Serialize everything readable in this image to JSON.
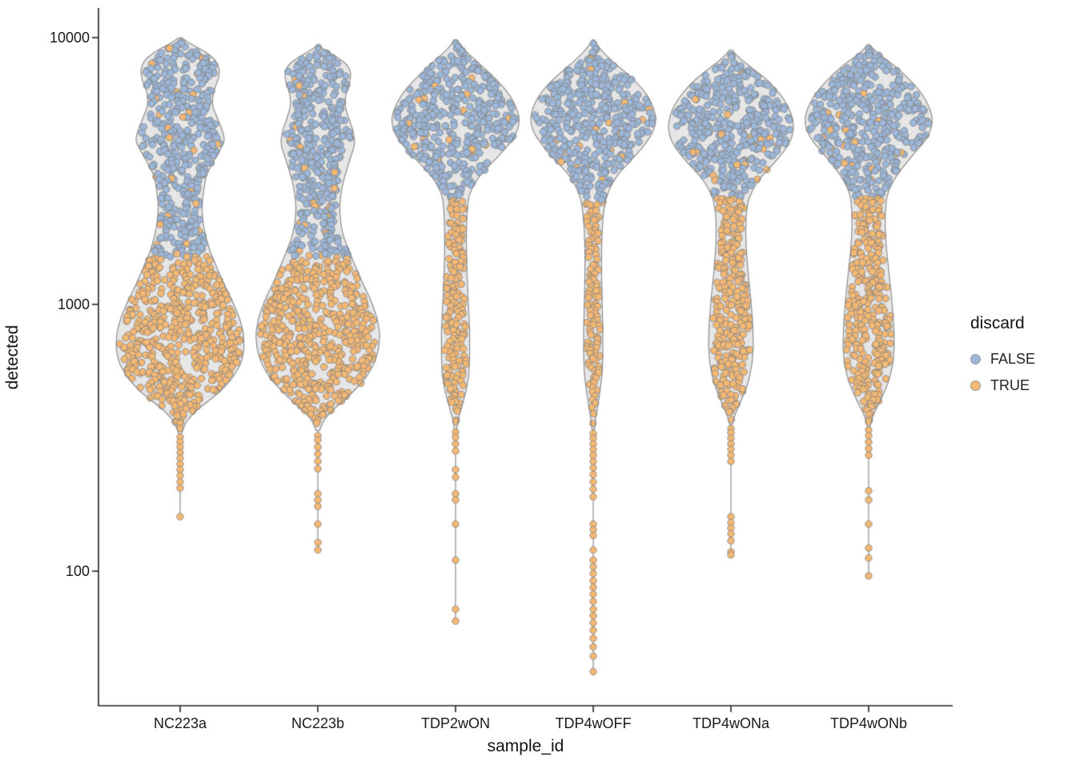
{
  "figure": {
    "background": "#FFFFFF"
  },
  "chart_data": {
    "type": "violin",
    "title": "",
    "xlabel": "sample_id",
    "ylabel": "detected",
    "y_scale": "log10",
    "ylim": [
      35,
      11000
    ],
    "grid": false,
    "legend": {
      "title": "discard",
      "position": "right",
      "entries": [
        {
          "label": "FALSE",
          "color": "#9CB7D9"
        },
        {
          "label": "TRUE",
          "color": "#F5B873"
        }
      ]
    },
    "y_ticks": [
      {
        "label": "10000",
        "value": 10000
      },
      {
        "label": "1000",
        "value": 1000
      },
      {
        "label": "100",
        "value": 100
      }
    ],
    "categories": [
      "NC223a",
      "NC223b",
      "TDP2wON",
      "TDP4wOFF",
      "TDP4wONa",
      "TDP4wONb"
    ],
    "style": {
      "false_color": "#9CB7D9",
      "true_color": "#F5B873",
      "point_stroke": "#9B9B9B",
      "violin_fill": "#E6E6E6",
      "violin_stroke": "#8C8C8C",
      "axis_color": "#222222",
      "text_color": "#111111"
    },
    "violins": [
      {
        "sample": "NC223a",
        "discard_threshold": 1500,
        "profile": [
          [
            10000,
            0.02
          ],
          [
            9500,
            0.15
          ],
          [
            9000,
            0.35
          ],
          [
            8300,
            0.55
          ],
          [
            7600,
            0.62
          ],
          [
            7000,
            0.6
          ],
          [
            6300,
            0.52
          ],
          [
            5600,
            0.5
          ],
          [
            5000,
            0.58
          ],
          [
            4500,
            0.66
          ],
          [
            4100,
            0.7
          ],
          [
            3700,
            0.6
          ],
          [
            3300,
            0.48
          ],
          [
            3000,
            0.4
          ],
          [
            2600,
            0.36
          ],
          [
            2300,
            0.34
          ],
          [
            2000,
            0.36
          ],
          [
            1800,
            0.4
          ],
          [
            1600,
            0.46
          ],
          [
            1400,
            0.56
          ],
          [
            1200,
            0.68
          ],
          [
            1050,
            0.8
          ],
          [
            900,
            0.92
          ],
          [
            780,
            0.99
          ],
          [
            680,
            1.0
          ],
          [
            600,
            0.95
          ],
          [
            530,
            0.82
          ],
          [
            470,
            0.62
          ],
          [
            430,
            0.42
          ],
          [
            400,
            0.25
          ],
          [
            370,
            0.12
          ],
          [
            345,
            0.05
          ],
          [
            325,
            0.02
          ]
        ],
        "tail_points": [
          318,
          305,
          292,
          278,
          265,
          252,
          240,
          228,
          216,
          205,
          160
        ]
      },
      {
        "sample": "NC223b",
        "discard_threshold": 1500,
        "profile": [
          [
            9300,
            0.02
          ],
          [
            9000,
            0.1
          ],
          [
            8500,
            0.28
          ],
          [
            8000,
            0.45
          ],
          [
            7400,
            0.52
          ],
          [
            6800,
            0.5
          ],
          [
            6200,
            0.44
          ],
          [
            5600,
            0.42
          ],
          [
            5000,
            0.48
          ],
          [
            4500,
            0.55
          ],
          [
            4000,
            0.58
          ],
          [
            3600,
            0.52
          ],
          [
            3200,
            0.45
          ],
          [
            2900,
            0.4
          ],
          [
            2600,
            0.36
          ],
          [
            2300,
            0.34
          ],
          [
            2000,
            0.36
          ],
          [
            1800,
            0.4
          ],
          [
            1600,
            0.48
          ],
          [
            1400,
            0.58
          ],
          [
            1200,
            0.7
          ],
          [
            1050,
            0.82
          ],
          [
            900,
            0.92
          ],
          [
            780,
            0.97
          ],
          [
            680,
            0.95
          ],
          [
            600,
            0.88
          ],
          [
            530,
            0.75
          ],
          [
            470,
            0.55
          ],
          [
            430,
            0.38
          ],
          [
            400,
            0.22
          ],
          [
            370,
            0.1
          ],
          [
            345,
            0.04
          ],
          [
            330,
            0.02
          ]
        ],
        "tail_points": [
          322,
          310,
          292,
          275,
          258,
          242,
          195,
          185,
          175,
          150,
          128,
          120
        ]
      },
      {
        "sample": "TDP2wON",
        "discard_threshold": 2500,
        "profile": [
          [
            9800,
            0.02
          ],
          [
            9300,
            0.08
          ],
          [
            8800,
            0.18
          ],
          [
            8300,
            0.3
          ],
          [
            7800,
            0.42
          ],
          [
            7300,
            0.55
          ],
          [
            6800,
            0.68
          ],
          [
            6300,
            0.8
          ],
          [
            5800,
            0.9
          ],
          [
            5300,
            0.97
          ],
          [
            4900,
            1.0
          ],
          [
            4500,
            0.97
          ],
          [
            4100,
            0.88
          ],
          [
            3700,
            0.72
          ],
          [
            3300,
            0.52
          ],
          [
            3000,
            0.36
          ],
          [
            2700,
            0.25
          ],
          [
            2500,
            0.2
          ],
          [
            2200,
            0.18
          ],
          [
            1900,
            0.17
          ],
          [
            1600,
            0.17
          ],
          [
            1300,
            0.18
          ],
          [
            1000,
            0.2
          ],
          [
            800,
            0.22
          ],
          [
            650,
            0.22
          ],
          [
            550,
            0.21
          ],
          [
            480,
            0.17
          ],
          [
            430,
            0.12
          ],
          [
            390,
            0.07
          ],
          [
            360,
            0.03
          ],
          [
            340,
            0.02
          ]
        ],
        "tail_points": [
          332,
          318,
          300,
          282,
          240,
          225,
          195,
          185,
          150,
          110,
          72,
          65
        ]
      },
      {
        "sample": "TDP4wOFF",
        "discard_threshold": 2450,
        "profile": [
          [
            9800,
            0.02
          ],
          [
            9400,
            0.06
          ],
          [
            9000,
            0.12
          ],
          [
            8500,
            0.22
          ],
          [
            8000,
            0.34
          ],
          [
            7500,
            0.48
          ],
          [
            7000,
            0.62
          ],
          [
            6500,
            0.75
          ],
          [
            6000,
            0.86
          ],
          [
            5500,
            0.94
          ],
          [
            5000,
            0.98
          ],
          [
            4600,
            0.96
          ],
          [
            4200,
            0.88
          ],
          [
            3800,
            0.74
          ],
          [
            3400,
            0.56
          ],
          [
            3100,
            0.4
          ],
          [
            2800,
            0.28
          ],
          [
            2500,
            0.2
          ],
          [
            2200,
            0.16
          ],
          [
            1900,
            0.14
          ],
          [
            1600,
            0.13
          ],
          [
            1300,
            0.13
          ],
          [
            1000,
            0.14
          ],
          [
            800,
            0.15
          ],
          [
            650,
            0.15
          ],
          [
            550,
            0.14
          ],
          [
            480,
            0.11
          ],
          [
            430,
            0.08
          ],
          [
            390,
            0.05
          ],
          [
            360,
            0.03
          ],
          [
            335,
            0.02
          ]
        ],
        "tail_points": [
          328,
          315,
          300,
          286,
          272,
          258,
          244,
          230,
          216,
          203,
          190,
          150,
          143,
          136,
          120,
          110,
          104,
          98,
          92,
          87,
          82,
          77,
          72,
          68,
          64,
          60,
          56,
          52,
          48,
          42
        ]
      },
      {
        "sample": "TDP4wONa",
        "discard_threshold": 2500,
        "profile": [
          [
            9000,
            0.02
          ],
          [
            8600,
            0.08
          ],
          [
            8200,
            0.18
          ],
          [
            7800,
            0.3
          ],
          [
            7400,
            0.42
          ],
          [
            7000,
            0.55
          ],
          [
            6500,
            0.68
          ],
          [
            6000,
            0.8
          ],
          [
            5500,
            0.9
          ],
          [
            5000,
            0.96
          ],
          [
            4600,
            0.98
          ],
          [
            4200,
            0.95
          ],
          [
            3800,
            0.85
          ],
          [
            3400,
            0.68
          ],
          [
            3100,
            0.52
          ],
          [
            2800,
            0.38
          ],
          [
            2500,
            0.28
          ],
          [
            2200,
            0.24
          ],
          [
            1900,
            0.23
          ],
          [
            1600,
            0.24
          ],
          [
            1300,
            0.27
          ],
          [
            1050,
            0.31
          ],
          [
            850,
            0.34
          ],
          [
            700,
            0.35
          ],
          [
            600,
            0.33
          ],
          [
            520,
            0.28
          ],
          [
            460,
            0.2
          ],
          [
            420,
            0.13
          ],
          [
            390,
            0.07
          ],
          [
            365,
            0.03
          ],
          [
            350,
            0.02
          ]
        ],
        "tail_points": [
          342,
          330,
          315,
          300,
          286,
          272,
          258,
          160,
          152,
          145,
          138,
          130,
          118,
          115
        ]
      },
      {
        "sample": "TDP4wONb",
        "discard_threshold": 2500,
        "profile": [
          [
            9400,
            0.02
          ],
          [
            9000,
            0.08
          ],
          [
            8600,
            0.18
          ],
          [
            8200,
            0.3
          ],
          [
            7800,
            0.42
          ],
          [
            7300,
            0.55
          ],
          [
            6800,
            0.68
          ],
          [
            6300,
            0.8
          ],
          [
            5800,
            0.9
          ],
          [
            5300,
            0.97
          ],
          [
            4900,
            1.0
          ],
          [
            4500,
            0.97
          ],
          [
            4100,
            0.88
          ],
          [
            3700,
            0.72
          ],
          [
            3300,
            0.55
          ],
          [
            3000,
            0.42
          ],
          [
            2700,
            0.32
          ],
          [
            2500,
            0.28
          ],
          [
            2200,
            0.26
          ],
          [
            1900,
            0.26
          ],
          [
            1600,
            0.28
          ],
          [
            1300,
            0.32
          ],
          [
            1050,
            0.36
          ],
          [
            850,
            0.39
          ],
          [
            700,
            0.4
          ],
          [
            600,
            0.38
          ],
          [
            520,
            0.32
          ],
          [
            460,
            0.23
          ],
          [
            420,
            0.15
          ],
          [
            390,
            0.08
          ],
          [
            365,
            0.04
          ],
          [
            345,
            0.02
          ]
        ],
        "tail_points": [
          338,
          322,
          305,
          288,
          272,
          200,
          185,
          150,
          122,
          112,
          96
        ]
      }
    ]
  }
}
